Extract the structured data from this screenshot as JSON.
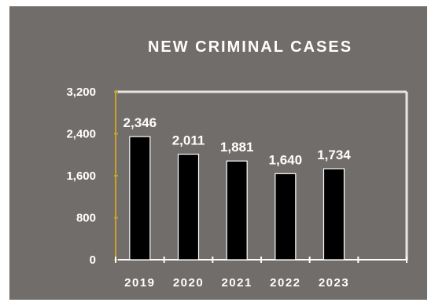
{
  "chart_data": {
    "type": "bar",
    "title": "NEW CRIMINAL CASES",
    "xlabel": "",
    "ylabel": "",
    "categories": [
      "2019",
      "2020",
      "2021",
      "2022",
      "2023"
    ],
    "values": [
      2346,
      2011,
      1881,
      1640,
      1734
    ],
    "data_labels": [
      "2,346",
      "2,011",
      "1,881",
      "1,640",
      "1,734"
    ],
    "y_ticks": [
      0,
      800,
      1600,
      2400,
      3200
    ],
    "y_tick_labels": [
      "0",
      "800",
      "1,600",
      "2,400",
      "3,200"
    ],
    "ylim": [
      0,
      3200
    ],
    "grid": false,
    "legend": "none",
    "colors": {
      "background": "#716d6b",
      "bar": "#000000",
      "bar_outline": "#ffffff",
      "axis": "#ffffff",
      "y_axis": "#c9a227",
      "text": "#ffffff"
    }
  }
}
